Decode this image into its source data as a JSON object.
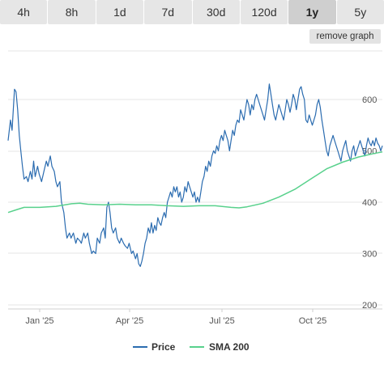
{
  "tabs": [
    {
      "label": "4h",
      "active": false
    },
    {
      "label": "8h",
      "active": false
    },
    {
      "label": "1d",
      "active": false
    },
    {
      "label": "7d",
      "active": false
    },
    {
      "label": "30d",
      "active": false
    },
    {
      "label": "120d",
      "active": false
    },
    {
      "label": "1y",
      "active": true
    },
    {
      "label": "5y",
      "active": false
    }
  ],
  "remove_graph_label": "remove graph",
  "colors": {
    "price": "#2b6cb0",
    "sma": "#58d18c",
    "grid": "#e6e6e6"
  },
  "chart_data": {
    "type": "line",
    "x_ticks": [
      "Jan '25",
      "Apr '25",
      "Jul '25",
      "Oct '25"
    ],
    "y_ticks": [
      200,
      300,
      400,
      500,
      600
    ],
    "ylim": [
      190,
      630
    ],
    "series": [
      {
        "name": "Price",
        "points": [
          [
            0,
            520
          ],
          [
            3,
            560
          ],
          [
            5,
            540
          ],
          [
            8,
            620
          ],
          [
            10,
            615
          ],
          [
            12,
            580
          ],
          [
            14,
            530
          ],
          [
            16,
            500
          ],
          [
            18,
            470
          ],
          [
            20,
            445
          ],
          [
            23,
            450
          ],
          [
            25,
            440
          ],
          [
            28,
            460
          ],
          [
            30,
            445
          ],
          [
            32,
            480
          ],
          [
            34,
            450
          ],
          [
            37,
            470
          ],
          [
            39,
            455
          ],
          [
            42,
            440
          ],
          [
            45,
            460
          ],
          [
            48,
            480
          ],
          [
            50,
            470
          ],
          [
            53,
            490
          ],
          [
            55,
            470
          ],
          [
            58,
            460
          ],
          [
            60,
            440
          ],
          [
            62,
            430
          ],
          [
            65,
            440
          ],
          [
            67,
            400
          ],
          [
            70,
            380
          ],
          [
            72,
            350
          ],
          [
            74,
            330
          ],
          [
            77,
            340
          ],
          [
            79,
            330
          ],
          [
            82,
            340
          ],
          [
            85,
            320
          ],
          [
            87,
            330
          ],
          [
            90,
            325
          ],
          [
            92,
            320
          ],
          [
            95,
            340
          ],
          [
            97,
            330
          ],
          [
            100,
            340
          ],
          [
            102,
            320
          ],
          [
            105,
            300
          ],
          [
            107,
            305
          ],
          [
            110,
            300
          ],
          [
            112,
            330
          ],
          [
            115,
            320
          ],
          [
            117,
            340
          ],
          [
            120,
            350
          ],
          [
            122,
            330
          ],
          [
            124,
            390
          ],
          [
            126,
            400
          ],
          [
            128,
            380
          ],
          [
            130,
            350
          ],
          [
            132,
            340
          ],
          [
            135,
            350
          ],
          [
            137,
            330
          ],
          [
            140,
            320
          ],
          [
            142,
            330
          ],
          [
            145,
            320
          ],
          [
            147,
            315
          ],
          [
            150,
            310
          ],
          [
            152,
            320
          ],
          [
            155,
            300
          ],
          [
            157,
            305
          ],
          [
            160,
            290
          ],
          [
            162,
            300
          ],
          [
            164,
            280
          ],
          [
            166,
            275
          ],
          [
            168,
            285
          ],
          [
            170,
            300
          ],
          [
            172,
            320
          ],
          [
            174,
            330
          ],
          [
            176,
            350
          ],
          [
            178,
            340
          ],
          [
            180,
            360
          ],
          [
            182,
            340
          ],
          [
            184,
            355
          ],
          [
            186,
            345
          ],
          [
            188,
            370
          ],
          [
            190,
            360
          ],
          [
            192,
            355
          ],
          [
            194,
            370
          ],
          [
            196,
            380
          ],
          [
            198,
            370
          ],
          [
            200,
            400
          ],
          [
            202,
            410
          ],
          [
            204,
            420
          ],
          [
            206,
            410
          ],
          [
            208,
            430
          ],
          [
            210,
            420
          ],
          [
            212,
            430
          ],
          [
            214,
            410
          ],
          [
            216,
            420
          ],
          [
            218,
            400
          ],
          [
            220,
            410
          ],
          [
            222,
            430
          ],
          [
            224,
            420
          ],
          [
            226,
            440
          ],
          [
            228,
            430
          ],
          [
            230,
            420
          ],
          [
            232,
            410
          ],
          [
            234,
            420
          ],
          [
            236,
            400
          ],
          [
            238,
            410
          ],
          [
            240,
            400
          ],
          [
            242,
            420
          ],
          [
            244,
            440
          ],
          [
            246,
            450
          ],
          [
            248,
            470
          ],
          [
            250,
            460
          ],
          [
            252,
            480
          ],
          [
            254,
            470
          ],
          [
            256,
            490
          ],
          [
            258,
            500
          ],
          [
            260,
            495
          ],
          [
            262,
            510
          ],
          [
            264,
            500
          ],
          [
            266,
            520
          ],
          [
            268,
            530
          ],
          [
            270,
            520
          ],
          [
            272,
            540
          ],
          [
            274,
            530
          ],
          [
            276,
            520
          ],
          [
            278,
            500
          ],
          [
            280,
            520
          ],
          [
            282,
            540
          ],
          [
            284,
            530
          ],
          [
            286,
            550
          ],
          [
            288,
            560
          ],
          [
            290,
            555
          ],
          [
            292,
            580
          ],
          [
            294,
            570
          ],
          [
            296,
            560
          ],
          [
            298,
            580
          ],
          [
            300,
            600
          ],
          [
            302,
            590
          ],
          [
            304,
            570
          ],
          [
            306,
            590
          ],
          [
            308,
            580
          ],
          [
            310,
            600
          ],
          [
            312,
            610
          ],
          [
            314,
            600
          ],
          [
            316,
            590
          ],
          [
            318,
            580
          ],
          [
            320,
            570
          ],
          [
            322,
            560
          ],
          [
            324,
            580
          ],
          [
            326,
            600
          ],
          [
            328,
            630
          ],
          [
            330,
            610
          ],
          [
            332,
            590
          ],
          [
            334,
            570
          ],
          [
            336,
            560
          ],
          [
            338,
            575
          ],
          [
            340,
            590
          ],
          [
            342,
            580
          ],
          [
            344,
            570
          ],
          [
            346,
            560
          ],
          [
            348,
            580
          ],
          [
            350,
            600
          ],
          [
            352,
            590
          ],
          [
            354,
            575
          ],
          [
            356,
            590
          ],
          [
            358,
            610
          ],
          [
            360,
            600
          ],
          [
            362,
            580
          ],
          [
            364,
            600
          ],
          [
            366,
            620
          ],
          [
            368,
            625
          ],
          [
            370,
            610
          ],
          [
            372,
            600
          ],
          [
            374,
            560
          ],
          [
            376,
            555
          ],
          [
            378,
            570
          ],
          [
            380,
            560
          ],
          [
            382,
            550
          ],
          [
            384,
            560
          ],
          [
            386,
            570
          ],
          [
            388,
            590
          ],
          [
            390,
            600
          ],
          [
            392,
            585
          ],
          [
            394,
            560
          ],
          [
            396,
            540
          ],
          [
            398,
            520
          ],
          [
            400,
            500
          ],
          [
            402,
            490
          ],
          [
            404,
            510
          ],
          [
            406,
            520
          ],
          [
            408,
            530
          ],
          [
            410,
            520
          ],
          [
            412,
            510
          ],
          [
            414,
            500
          ],
          [
            416,
            490
          ],
          [
            418,
            480
          ],
          [
            420,
            500
          ],
          [
            422,
            510
          ],
          [
            424,
            520
          ],
          [
            426,
            500
          ],
          [
            428,
            490
          ],
          [
            430,
            480
          ],
          [
            432,
            500
          ],
          [
            434,
            510
          ],
          [
            436,
            490
          ],
          [
            438,
            500
          ],
          [
            440,
            510
          ],
          [
            442,
            520
          ],
          [
            444,
            510
          ],
          [
            446,
            500
          ],
          [
            448,
            490
          ],
          [
            450,
            510
          ],
          [
            452,
            525
          ],
          [
            454,
            515
          ],
          [
            456,
            510
          ],
          [
            458,
            520
          ],
          [
            460,
            510
          ],
          [
            462,
            525
          ],
          [
            464,
            515
          ],
          [
            466,
            510
          ],
          [
            468,
            500
          ],
          [
            470,
            510
          ]
        ]
      },
      {
        "name": "SMA 200",
        "points": [
          [
            0,
            380
          ],
          [
            10,
            385
          ],
          [
            20,
            390
          ],
          [
            40,
            390
          ],
          [
            60,
            392
          ],
          [
            80,
            397
          ],
          [
            90,
            398
          ],
          [
            100,
            396
          ],
          [
            120,
            395
          ],
          [
            140,
            396
          ],
          [
            160,
            395
          ],
          [
            180,
            395
          ],
          [
            200,
            393
          ],
          [
            220,
            392
          ],
          [
            240,
            393
          ],
          [
            260,
            393
          ],
          [
            280,
            390
          ],
          [
            290,
            389
          ],
          [
            300,
            391
          ],
          [
            320,
            398
          ],
          [
            340,
            410
          ],
          [
            360,
            425
          ],
          [
            380,
            445
          ],
          [
            400,
            465
          ],
          [
            420,
            478
          ],
          [
            440,
            488
          ],
          [
            460,
            495
          ],
          [
            470,
            498
          ]
        ]
      }
    ]
  }
}
